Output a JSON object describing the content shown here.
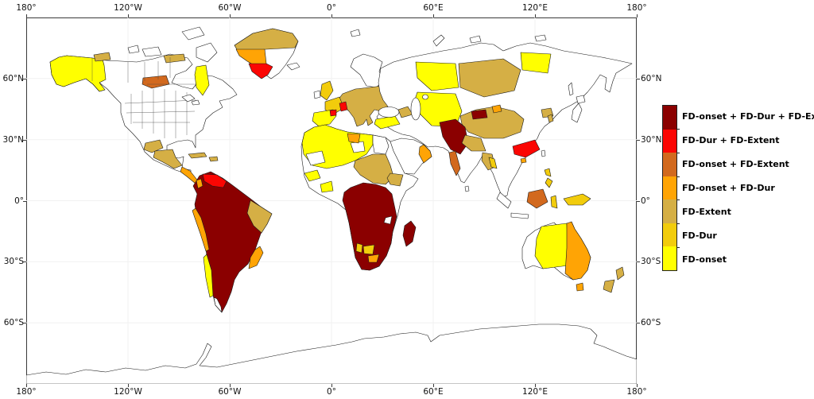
{
  "figure": {
    "kind": "world-choropleth-map",
    "description": "Global map of flash drought characteristic combinations by region",
    "background": "#ffffff",
    "frame_color": "#3a3a3a",
    "gridline_color": "#f1f1f1",
    "ocean_color": "#ffffff",
    "land_default_color": "#ffffff",
    "coastline_color": "#1a1a1a"
  },
  "map": {
    "axes": {
      "top": [
        "180°",
        "120°W",
        "60°W",
        "0°",
        "60°E",
        "120°E",
        "180°"
      ],
      "bottom": [
        "180°",
        "120°W",
        "60°W",
        "0°",
        "60°E",
        "120°E",
        "180°"
      ],
      "left": [
        "60°N",
        "30°N",
        "0°",
        "30°S",
        "60°S"
      ],
      "right": [
        "60°N",
        "30°N",
        "0°",
        "30°S",
        "60°S"
      ]
    }
  },
  "legend": {
    "entries": [
      {
        "category": "onset_dur_extent",
        "label": "FD-onset + FD-Dur + FD-Extent",
        "color": "#8B0000"
      },
      {
        "category": "dur_extent",
        "label": "FD-Dur + FD-Extent",
        "color": "#FB0603"
      },
      {
        "category": "onset_extent",
        "label": "FD-onset + FD-Extent",
        "color": "#D2691E"
      },
      {
        "category": "onset_dur",
        "label": "FD-onset + FD-Dur",
        "color": "#FFA405"
      },
      {
        "category": "extent",
        "label": "FD-Extent",
        "color": "#D5AF45"
      },
      {
        "category": "dur",
        "label": "FD-Dur",
        "color": "#F2CC0C"
      },
      {
        "category": "onset",
        "label": "FD-onset",
        "color": "#FFFF00"
      }
    ]
  },
  "regions": {
    "north_america_base": {
      "name": "North America mainland",
      "category": "none"
    },
    "alaska_yukon": {
      "name": "Alaska and Yukon",
      "category": "onset"
    },
    "alaska_ne_patch": {
      "name": "Northern Yukon / NWT patch",
      "category": "extent"
    },
    "nunavut_patch": {
      "name": "Nunavut mainland patch",
      "category": "extent"
    },
    "prairie_patch": {
      "name": "Central Canada patch",
      "category": "onset_extent"
    },
    "quebec_patch": {
      "name": "Quebec patch",
      "category": "onset"
    },
    "baffin_island": {
      "name": "Baffin Island",
      "category": "none"
    },
    "victoria_island": {
      "name": "Victoria Island",
      "category": "none"
    },
    "ellesmere_island": {
      "name": "Ellesmere Island",
      "category": "none"
    },
    "banks_island": {
      "name": "Banks Island",
      "category": "none"
    },
    "greenland_base": {
      "name": "Greenland",
      "category": "none"
    },
    "greenland_north": {
      "name": "North Greenland",
      "category": "extent"
    },
    "greenland_west": {
      "name": "West Greenland",
      "category": "onset_dur"
    },
    "greenland_south": {
      "name": "South Greenland",
      "category": "dur_extent"
    },
    "iceland": {
      "name": "Iceland",
      "category": "none"
    },
    "mexico_west_patch": {
      "name": "Central-west Mexico",
      "category": "extent"
    },
    "mexico_south_patch": {
      "name": "Southern Mexico / Guatemala",
      "category": "extent"
    },
    "central_america_patch": {
      "name": "Costa Rica / Panama",
      "category": "onset_dur"
    },
    "cuba": {
      "name": "Cuba",
      "category": "extent"
    },
    "hispaniola": {
      "name": "Hispaniola",
      "category": "extent"
    },
    "south_america_core": {
      "name": "South America core",
      "category": "onset_dur_extent"
    },
    "venezuela": {
      "name": "Venezuela / N Colombia",
      "category": "dur_extent"
    },
    "colombia_coast": {
      "name": "Colombia Pacific coast",
      "category": "onset_dur"
    },
    "peru_coast": {
      "name": "Coastal Peru",
      "category": "onset_dur"
    },
    "chile_central": {
      "name": "Central Chile",
      "category": "onset"
    },
    "ne_brazil": {
      "name": "Northeast Brazil",
      "category": "extent"
    },
    "se_brazil": {
      "name": "SE Brazil / Paraguay",
      "category": "onset_dur"
    },
    "southern_chile": {
      "name": "Southern Chile",
      "category": "none"
    },
    "uk": {
      "name": "United Kingdom",
      "category": "dur"
    },
    "ireland": {
      "name": "Ireland",
      "category": "none"
    },
    "scandinavia": {
      "name": "Scandinavia / Finland",
      "category": "none"
    },
    "france": {
      "name": "France",
      "category": "dur"
    },
    "france_se": {
      "name": "SE France",
      "category": "dur_extent"
    },
    "iberia": {
      "name": "Iberian Peninsula",
      "category": "onset"
    },
    "spain_ne": {
      "name": "NE Spain",
      "category": "dur_extent"
    },
    "central_europe": {
      "name": "Central Europe / Balkans / Ukraine",
      "category": "extent"
    },
    "west_russia": {
      "name": "Western Russia",
      "category": "dur_extent"
    },
    "eurasia_base": {
      "name": "Eurasia mainland",
      "category": "none"
    },
    "turkey": {
      "name": "Turkey",
      "category": "onset"
    },
    "caucasus": {
      "name": "Caucasus",
      "category": "extent"
    },
    "central_asia": {
      "name": "Central Asia",
      "category": "onset"
    },
    "west_siberia": {
      "name": "Western Siberia",
      "category": "onset"
    },
    "central_siberia": {
      "name": "Central Siberia",
      "category": "extent"
    },
    "yakutia": {
      "name": "Lena basin / Yakutia",
      "category": "onset"
    },
    "pakistan_nw_india": {
      "name": "Pakistan / NW India",
      "category": "onset_dur_extent"
    },
    "india_west_coast": {
      "name": "Indian west coast",
      "category": "onset_extent"
    },
    "north_india": {
      "name": "Gangetic plain / Nepal",
      "category": "extent"
    },
    "bangladesh_myanmar": {
      "name": "Bangladesh / Myanmar",
      "category": "extent"
    },
    "myanmar_gold": {
      "name": "Myanmar patch",
      "category": "dur"
    },
    "china_west": {
      "name": "Western China / Tibet",
      "category": "extent"
    },
    "xinjiang_patch": {
      "name": "Xinjiang patch",
      "category": "onset_dur_extent"
    },
    "xinjiang_orange": {
      "name": "NW China patch",
      "category": "onset_dur"
    },
    "ne_china": {
      "name": "NE China coast",
      "category": "extent"
    },
    "korea_patch": {
      "name": "Korea patch",
      "category": "extent"
    },
    "south_china": {
      "name": "South China",
      "category": "dur_extent"
    },
    "hainan": {
      "name": "Hainan",
      "category": "onset_dur"
    },
    "japan": {
      "name": "Japan (Honshu)",
      "category": "none"
    },
    "hokkaido": {
      "name": "Japan (Hokkaido)",
      "category": "none"
    },
    "sakhalin": {
      "name": "Sakhalin",
      "category": "none"
    },
    "taiwan": {
      "name": "Taiwan",
      "category": "none"
    },
    "sri_lanka": {
      "name": "Sri Lanka",
      "category": "none"
    },
    "africa_base": {
      "name": "Africa mainland",
      "category": "none"
    },
    "north_africa": {
      "name": "North Africa / Sahara",
      "category": "onset"
    },
    "mauritania_gap": {
      "name": "Mauritania interior",
      "category": "none"
    },
    "libya_gap": {
      "name": "Libya interior",
      "category": "none"
    },
    "niger_patch": {
      "name": "Niger / S Libya",
      "category": "onset_dur"
    },
    "egypt": {
      "name": "Egypt",
      "category": "none"
    },
    "sudan_chad": {
      "name": "Chad / Sudan",
      "category": "extent"
    },
    "ethiopia": {
      "name": "Ethiopia",
      "category": "extent"
    },
    "guinea_patch": {
      "name": "Senegal / Guinea",
      "category": "onset"
    },
    "ghana_patch": {
      "name": "Ivory Coast / Ghana",
      "category": "onset"
    },
    "central_southern_africa": {
      "name": "Central and Southern Africa",
      "category": "onset_dur_extent"
    },
    "zambia_gap": {
      "name": "Zambia gap",
      "category": "none"
    },
    "botswana_patch": {
      "name": "Botswana",
      "category": "dur"
    },
    "south_africa_patch": {
      "name": "Interior South Africa",
      "category": "onset_dur"
    },
    "namibia_patch": {
      "name": "Namibia interior",
      "category": "dur"
    },
    "madagascar": {
      "name": "Madagascar",
      "category": "onset_dur_extent"
    },
    "arabia": {
      "name": "Arabian Peninsula",
      "category": "none"
    },
    "arabia_east": {
      "name": "Eastern Arabia / Oman",
      "category": "onset_dur"
    },
    "sumatra": {
      "name": "Sumatra",
      "category": "none"
    },
    "java": {
      "name": "Java",
      "category": "none"
    },
    "borneo": {
      "name": "Borneo",
      "category": "onset_extent"
    },
    "sulawesi": {
      "name": "Sulawesi",
      "category": "dur"
    },
    "philippines_n": {
      "name": "Philippines (Luzon)",
      "category": "dur"
    },
    "philippines_s": {
      "name": "Philippines (south)",
      "category": "dur"
    },
    "new_guinea": {
      "name": "New Guinea",
      "category": "dur"
    },
    "australia_base": {
      "name": "Western Australia",
      "category": "none"
    },
    "australia_center": {
      "name": "Central / Northern Australia",
      "category": "onset"
    },
    "australia_east": {
      "name": "Eastern Australia",
      "category": "onset_dur"
    },
    "tasmania": {
      "name": "Tasmania",
      "category": "onset_dur"
    },
    "nz_north": {
      "name": "New Zealand North Island",
      "category": "extent"
    },
    "nz_south": {
      "name": "New Zealand South Island",
      "category": "extent"
    },
    "antarctica": {
      "name": "Antarctica",
      "category": "none"
    },
    "svalbard": {
      "name": "Svalbard",
      "category": "none"
    },
    "novaya_zemlya": {
      "name": "Novaya Zemlya",
      "category": "none"
    },
    "severnaya_zemlya": {
      "name": "Severnaya Zemlya",
      "category": "none"
    },
    "new_siberian": {
      "name": "New Siberian Islands",
      "category": "none"
    },
    "great_lake_w": {
      "name": "Great Lakes (west)",
      "category": "none"
    },
    "great_lake_e": {
      "name": "Great Lakes (east)",
      "category": "none"
    }
  }
}
